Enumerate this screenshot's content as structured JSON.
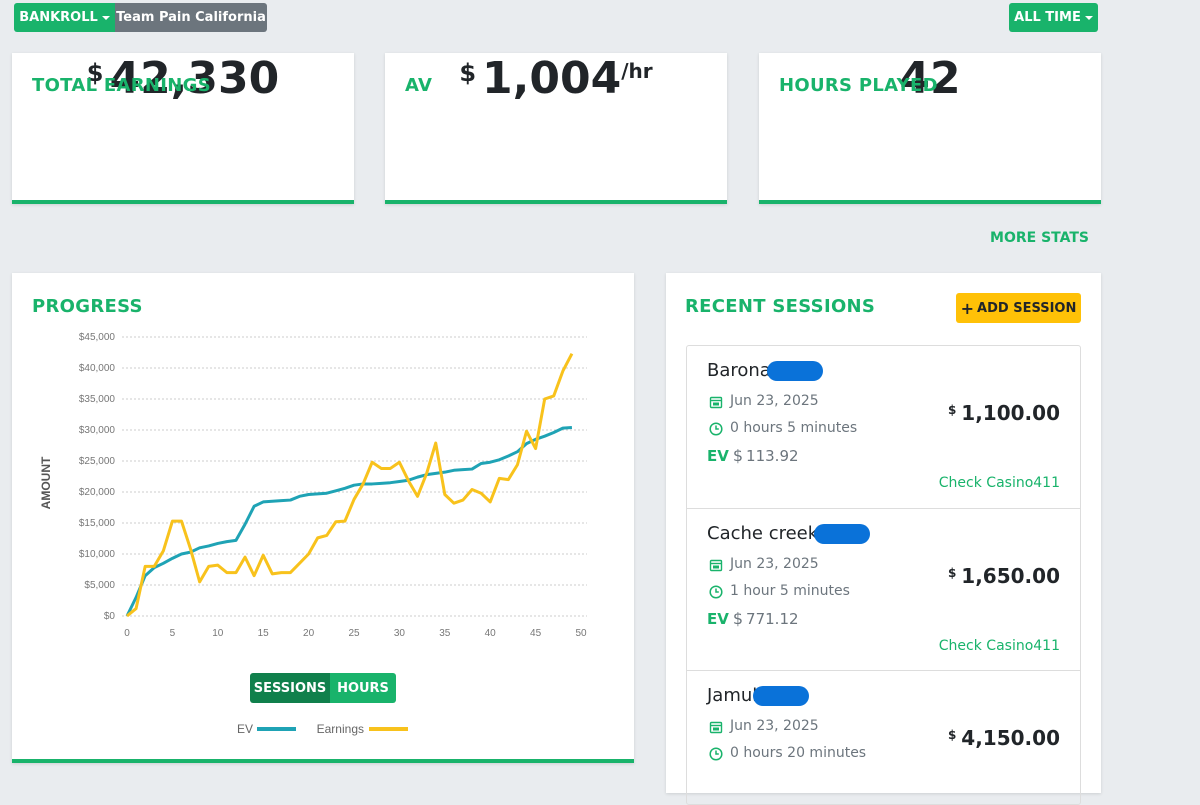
{
  "toolbar": {
    "bankroll": "BANKROLL",
    "team": "Team Pain California",
    "range": "ALL TIME"
  },
  "stats": [
    {
      "title": "TOTAL EARNINGS",
      "currency": "$",
      "value": "42,330"
    },
    {
      "title": "AV",
      "currency": "$",
      "value": "1,004",
      "unit": "/hr"
    },
    {
      "title": "HOURS PLAYED",
      "value": "42"
    }
  ],
  "more_stats": "MORE STATS",
  "progress": {
    "title": "PROGRESS",
    "toggle": [
      "SESSIONS",
      "HOURS"
    ]
  },
  "chart_data": {
    "type": "line",
    "y_label": "AMOUNT",
    "x": [
      0,
      1,
      2,
      3,
      4,
      5,
      6,
      7,
      8,
      9,
      10,
      11,
      12,
      13,
      14,
      15,
      16,
      17,
      18,
      19,
      20,
      21,
      22,
      23,
      24,
      25,
      26,
      27,
      28,
      29,
      30,
      31,
      32,
      33,
      34,
      35,
      36,
      37,
      38,
      39,
      40,
      41,
      42,
      43,
      44,
      45,
      46,
      47,
      48,
      49
    ],
    "series": [
      {
        "name": "EV",
        "color": "#1fa3b5",
        "values": [
          0,
          3000,
          6500,
          7800,
          8500,
          9300,
          10000,
          10300,
          11000,
          11300,
          11700,
          12000,
          12200,
          14800,
          17700,
          18400,
          18500,
          18600,
          18700,
          19300,
          19600,
          19700,
          19800,
          20200,
          20600,
          21100,
          21300,
          21300,
          21400,
          21500,
          21700,
          21900,
          22400,
          22800,
          23000,
          23200,
          23500,
          23600,
          23700,
          24600,
          24800,
          25200,
          25800,
          26500,
          27800,
          28500,
          29000,
          29600,
          30300,
          30400
        ]
      },
      {
        "name": "Earnings",
        "color": "#f8c21c",
        "values": [
          0,
          1200,
          8000,
          8000,
          10500,
          15300,
          15300,
          10800,
          5500,
          8000,
          8200,
          7000,
          7000,
          9500,
          6500,
          9800,
          6800,
          7000,
          7000,
          8500,
          10000,
          12600,
          13000,
          15200,
          15300,
          18800,
          21300,
          24800,
          23800,
          23800,
          24800,
          21800,
          19300,
          23000,
          27900,
          19600,
          18200,
          18700,
          20400,
          19800,
          18400,
          22200,
          22000,
          24400,
          29800,
          27000,
          35000,
          35500,
          39500,
          42300
        ]
      }
    ],
    "xlim": [
      0,
      50
    ],
    "xticks": [
      0,
      5,
      10,
      15,
      20,
      25,
      30,
      35,
      40,
      45,
      50
    ],
    "ylim": [
      0,
      45000
    ],
    "yticks": [
      {
        "value": 0,
        "label": "$0"
      },
      {
        "value": 5000,
        "label": "$5,000"
      },
      {
        "value": 10000,
        "label": "$10,000"
      },
      {
        "value": 15000,
        "label": "$15,000"
      },
      {
        "value": 20000,
        "label": "$20,000"
      },
      {
        "value": 25000,
        "label": "$25,000"
      },
      {
        "value": 30000,
        "label": "$30,000"
      },
      {
        "value": 35000,
        "label": "$35,000"
      },
      {
        "value": 40000,
        "label": "$40,000"
      },
      {
        "value": 45000,
        "label": "$45,000"
      }
    ],
    "grid": true
  },
  "recent": {
    "title": "RECENT SESSIONS",
    "add_icon": "+",
    "add_button": "ADD SESSION",
    "sessions": [
      {
        "name": "Barona",
        "date": "Jun 23, 2025",
        "duration": "0 hours 5 minutes",
        "ev_label": "EV",
        "ev_currency": "$",
        "ev_value": "113.92",
        "currency": "$",
        "amount": "1,100.00",
        "link": "Check Casino411"
      },
      {
        "name": "Cache creek",
        "date": "Jun 23, 2025",
        "duration": "1 hour 5 minutes",
        "ev_label": "EV",
        "ev_currency": "$",
        "ev_value": "771.12",
        "currency": "$",
        "amount": "1,650.00",
        "link": "Check Casino411"
      },
      {
        "name": "Jamul",
        "date": "Jun 23, 2025",
        "duration": "0 hours 20 minutes",
        "currency": "$",
        "amount": "4,150.00"
      }
    ]
  }
}
